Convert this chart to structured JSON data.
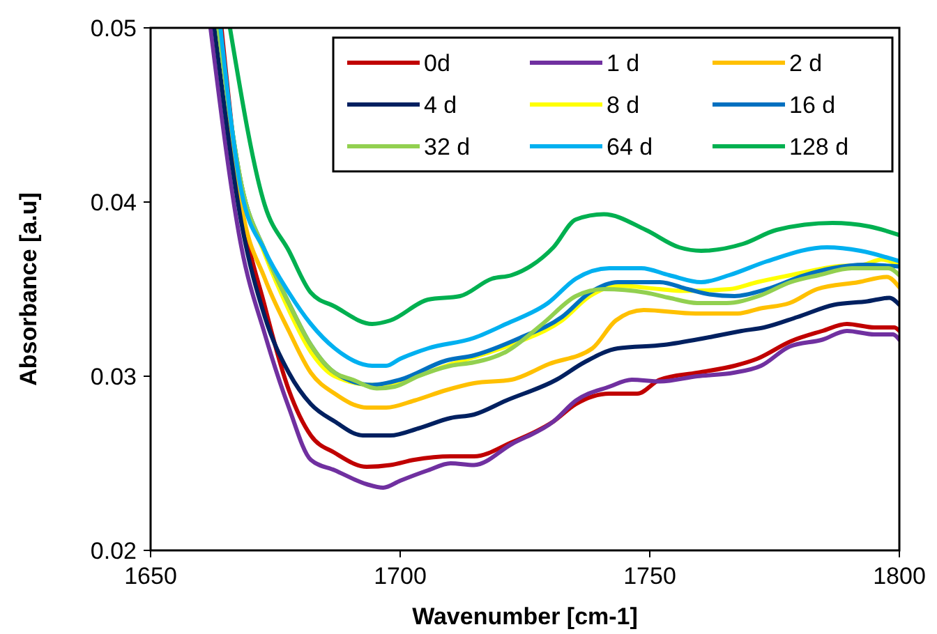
{
  "chart_data": {
    "type": "line",
    "xlabel": "Wavenumber [cm-1]",
    "ylabel": "Absorbance [a.u]",
    "xlim": [
      1650,
      1800
    ],
    "xticks": [
      1650,
      1700,
      1750,
      1800
    ],
    "ylim": [
      0.02,
      0.05
    ],
    "yticks": [
      0.02,
      0.03,
      0.04,
      0.05
    ],
    "grid": false,
    "legend": "top right",
    "marker": "none",
    "line_style": "solid",
    "series": [
      {
        "name": "0d",
        "color": "#c00000",
        "x": [
          1664.2,
          1668.2,
          1672.9,
          1677.7,
          1682.1,
          1686.9,
          1693.3,
          1698.0,
          1702.8,
          1710.1,
          1714.8,
          1722.3,
          1730.7,
          1735.2,
          1741.9,
          1747.5,
          1752.0,
          1759.5,
          1767.0,
          1771.5,
          1778.2,
          1784.6,
          1789.5,
          1795.0,
          1799,
          1800
        ],
        "values": [
          0.05,
          0.0398,
          0.034,
          0.0292,
          0.0266,
          0.0256,
          0.0248,
          0.0249,
          0.0252,
          0.0254,
          0.0254,
          0.0262,
          0.0274,
          0.0284,
          0.029,
          0.029,
          0.0298,
          0.0302,
          0.0306,
          0.031,
          0.032,
          0.0326,
          0.033,
          0.0328,
          0.0328,
          0.0326
        ]
      },
      {
        "name": "1 d",
        "color": "#7030a0",
        "x": [
          1662.0,
          1668.2,
          1672.9,
          1677.7,
          1682.1,
          1686.9,
          1693.3,
          1696.6,
          1700.0,
          1705.6,
          1710.1,
          1714.8,
          1722.3,
          1730.7,
          1735.2,
          1741.9,
          1746.4,
          1752.0,
          1759.5,
          1766.8,
          1772.3,
          1778.0,
          1784.6,
          1789.5,
          1795.0,
          1798.7,
          1800
        ],
        "values": [
          0.05,
          0.0374,
          0.0324,
          0.0282,
          0.0252,
          0.0246,
          0.0238,
          0.0236,
          0.024,
          0.0246,
          0.025,
          0.0249,
          0.0261,
          0.0274,
          0.0286,
          0.0294,
          0.0298,
          0.0297,
          0.03,
          0.0302,
          0.0306,
          0.0317,
          0.0321,
          0.0326,
          0.0324,
          0.0324,
          0.0321
        ]
      },
      {
        "name": "2 d",
        "color": "#ffc000",
        "x": [
          1663.9,
          1668.2,
          1672.9,
          1677.7,
          1682.1,
          1686.9,
          1693.3,
          1697.2,
          1702.8,
          1709.2,
          1714.8,
          1722.3,
          1729.8,
          1738.5,
          1743.2,
          1748.8,
          1759.2,
          1767.6,
          1772.3,
          1778.0,
          1783.5,
          1791.8,
          1797.5,
          1800
        ],
        "values": [
          0.05,
          0.0398,
          0.0356,
          0.0326,
          0.0302,
          0.029,
          0.0282,
          0.0282,
          0.0286,
          0.0292,
          0.0296,
          0.0298,
          0.0307,
          0.0316,
          0.0332,
          0.0338,
          0.0336,
          0.0336,
          0.0339,
          0.0342,
          0.035,
          0.0354,
          0.0357,
          0.0351
        ]
      },
      {
        "name": "4 d",
        "color": "#002060",
        "x": [
          1662.8,
          1668.2,
          1672.9,
          1677.7,
          1682.1,
          1686.9,
          1692.5,
          1698.0,
          1703.6,
          1710.1,
          1714.8,
          1721.2,
          1731.3,
          1736.9,
          1743.6,
          1752.8,
          1761.2,
          1768.4,
          1772.9,
          1779.6,
          1786.9,
          1793.6,
          1798.0,
          1800
        ],
        "values": [
          0.05,
          0.0388,
          0.0334,
          0.0302,
          0.0284,
          0.0274,
          0.0266,
          0.0266,
          0.027,
          0.0276,
          0.0278,
          0.0286,
          0.0298,
          0.0308,
          0.0316,
          0.0318,
          0.0322,
          0.0326,
          0.0328,
          0.0334,
          0.0341,
          0.0343,
          0.0345,
          0.0341
        ]
      },
      {
        "name": "8 d",
        "color": "#ffff00",
        "x": [
          1663.6,
          1668.2,
          1672.9,
          1677.7,
          1682.1,
          1686.9,
          1694.4,
          1700,
          1709.2,
          1716,
          1724,
          1732.4,
          1738,
          1743.6,
          1752,
          1756.7,
          1766,
          1771.5,
          1778.2,
          1787.3,
          1792.8,
          1796.4,
          1800
        ],
        "values": [
          0.05,
          0.041,
          0.037,
          0.0338,
          0.0314,
          0.03,
          0.0295,
          0.0297,
          0.0306,
          0.0312,
          0.032,
          0.0332,
          0.0346,
          0.0352,
          0.035,
          0.0349,
          0.035,
          0.0354,
          0.0358,
          0.0363,
          0.0364,
          0.0367,
          0.0364
        ]
      },
      {
        "name": "16 d",
        "color": "#0070c0",
        "x": [
          1663.6,
          1668.2,
          1672.9,
          1677.7,
          1682.1,
          1686.9,
          1694.4,
          1700.0,
          1709.2,
          1714.8,
          1724.0,
          1732.4,
          1738.0,
          1743.6,
          1752.0,
          1757.6,
          1762.0,
          1767.0,
          1773.5,
          1781.0,
          1786.6,
          1793.0,
          1800
        ],
        "values": [
          0.05,
          0.041,
          0.0372,
          0.0342,
          0.0318,
          0.0302,
          0.0295,
          0.0298,
          0.0309,
          0.0312,
          0.0322,
          0.0334,
          0.0348,
          0.0354,
          0.0354,
          0.035,
          0.0347,
          0.0346,
          0.035,
          0.0358,
          0.0362,
          0.0364,
          0.0363
        ]
      },
      {
        "name": "32 d",
        "color": "#92d050",
        "x": [
          1663.6,
          1668.2,
          1672.9,
          1677.7,
          1682.1,
          1686.9,
          1690.5,
          1695.3,
          1698.9,
          1703.6,
          1710.1,
          1714.8,
          1721.2,
          1728.5,
          1735.2,
          1740.8,
          1749.2,
          1753.9,
          1759.5,
          1765.4,
          1771.8,
          1778.2,
          1783.8,
          1790.5,
          1797.8,
          1800
        ],
        "values": [
          0.05,
          0.041,
          0.0372,
          0.0342,
          0.0318,
          0.0302,
          0.0298,
          0.0293,
          0.0294,
          0.03,
          0.0306,
          0.0308,
          0.0314,
          0.033,
          0.0346,
          0.035,
          0.0348,
          0.0345,
          0.0342,
          0.0342,
          0.0346,
          0.0354,
          0.0358,
          0.0362,
          0.0362,
          0.0358
        ]
      },
      {
        "name": "64 d",
        "color": "#00b0f0",
        "x": [
          1664.0,
          1668.2,
          1672.9,
          1677.7,
          1682.1,
          1686.9,
          1694.4,
          1697.2,
          1700.0,
          1705.6,
          1714.8,
          1721.2,
          1729.6,
          1735.2,
          1741.9,
          1748.3,
          1753.9,
          1760.3,
          1765.9,
          1773.5,
          1785.5,
          1792.2,
          1800
        ],
        "values": [
          0.05,
          0.0406,
          0.0372,
          0.0348,
          0.033,
          0.0316,
          0.0306,
          0.0306,
          0.031,
          0.0316,
          0.0322,
          0.033,
          0.0342,
          0.0356,
          0.0362,
          0.0362,
          0.0358,
          0.0354,
          0.0358,
          0.0366,
          0.0374,
          0.0372,
          0.0366
        ]
      },
      {
        "name": "128 d",
        "color": "#00b050",
        "x": [
          1665.9,
          1672.9,
          1677.7,
          1682.1,
          1686.9,
          1694.4,
          1698.0,
          1705.6,
          1712.0,
          1718.4,
          1722.3,
          1730.7,
          1735.2,
          1740.8,
          1749.2,
          1755.9,
          1760.3,
          1768.7,
          1775.4,
          1786.6,
          1793.9,
          1800
        ],
        "values": [
          0.05,
          0.0398,
          0.0372,
          0.0348,
          0.034,
          0.033,
          0.0332,
          0.0344,
          0.0346,
          0.0356,
          0.0358,
          0.0374,
          0.039,
          0.0393,
          0.0384,
          0.0374,
          0.0372,
          0.0376,
          0.0384,
          0.0388,
          0.0386,
          0.0381
        ]
      }
    ]
  }
}
